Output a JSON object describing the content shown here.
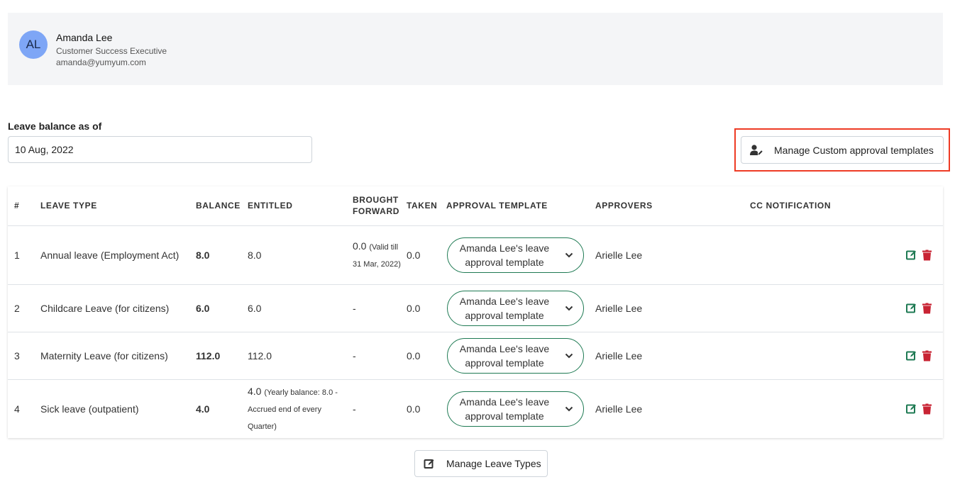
{
  "profile": {
    "initials": "AL",
    "name": "Amanda Lee",
    "role": "Customer Success Executive",
    "email": "amanda@yumyum.com"
  },
  "balance": {
    "label": "Leave balance as of",
    "date_value": "10 Aug, 2022"
  },
  "actions": {
    "manage_templates_label": "Manage Custom approval templates",
    "manage_leave_types_label": "Manage Leave Types"
  },
  "table": {
    "headers": {
      "num": "#",
      "leave_type": "LEAVE TYPE",
      "balance": "BALANCE",
      "entitled": "ENTITLED",
      "brought_forward_1": "BROUGHT",
      "brought_forward_2": "FORWARD",
      "taken": "TAKEN",
      "approval_template": "APPROVAL TEMPLATE",
      "approvers": "APPROVERS",
      "cc_notification": "CC NOTIFICATION"
    },
    "rows": [
      {
        "num": "1",
        "leave_type": "Annual leave (Employment Act)",
        "balance": "8.0",
        "entitled": "8.0",
        "entitled_note": "",
        "brought_forward": "0.0",
        "brought_forward_note": "(Valid till 31 Mar, 2022)",
        "taken": "0.0",
        "template": "Amanda Lee's leave approval template",
        "approvers": "Arielle Lee",
        "cc": ""
      },
      {
        "num": "2",
        "leave_type": "Childcare Leave (for citizens)",
        "balance": "6.0",
        "entitled": "6.0",
        "entitled_note": "",
        "brought_forward": "-",
        "brought_forward_note": "",
        "taken": "0.0",
        "template": "Amanda Lee's leave approval template",
        "approvers": "Arielle Lee",
        "cc": ""
      },
      {
        "num": "3",
        "leave_type": "Maternity Leave (for citizens)",
        "balance": "112.0",
        "entitled": "112.0",
        "entitled_note": "",
        "brought_forward": "-",
        "brought_forward_note": "",
        "taken": "0.0",
        "template": "Amanda Lee's leave approval template",
        "approvers": "Arielle Lee",
        "cc": ""
      },
      {
        "num": "4",
        "leave_type": "Sick leave (outpatient)",
        "balance": "4.0",
        "entitled": "4.0",
        "entitled_note": "(Yearly balance: 8.0 - Accrued end of every Quarter)",
        "brought_forward": "-",
        "brought_forward_note": "",
        "taken": "0.0",
        "template": "Amanda Lee's leave approval template",
        "approvers": "Arielle Lee",
        "cc": ""
      }
    ]
  },
  "icons": {
    "user_edit": "user-edit-icon",
    "chevron": "chevron-down-icon",
    "edit": "edit-icon",
    "delete": "trash-icon"
  },
  "colors": {
    "accent_green": "#1e7a53",
    "delete_red": "#c82333",
    "highlight_red": "#ee3b24",
    "avatar_blue": "#7ea6f6"
  }
}
